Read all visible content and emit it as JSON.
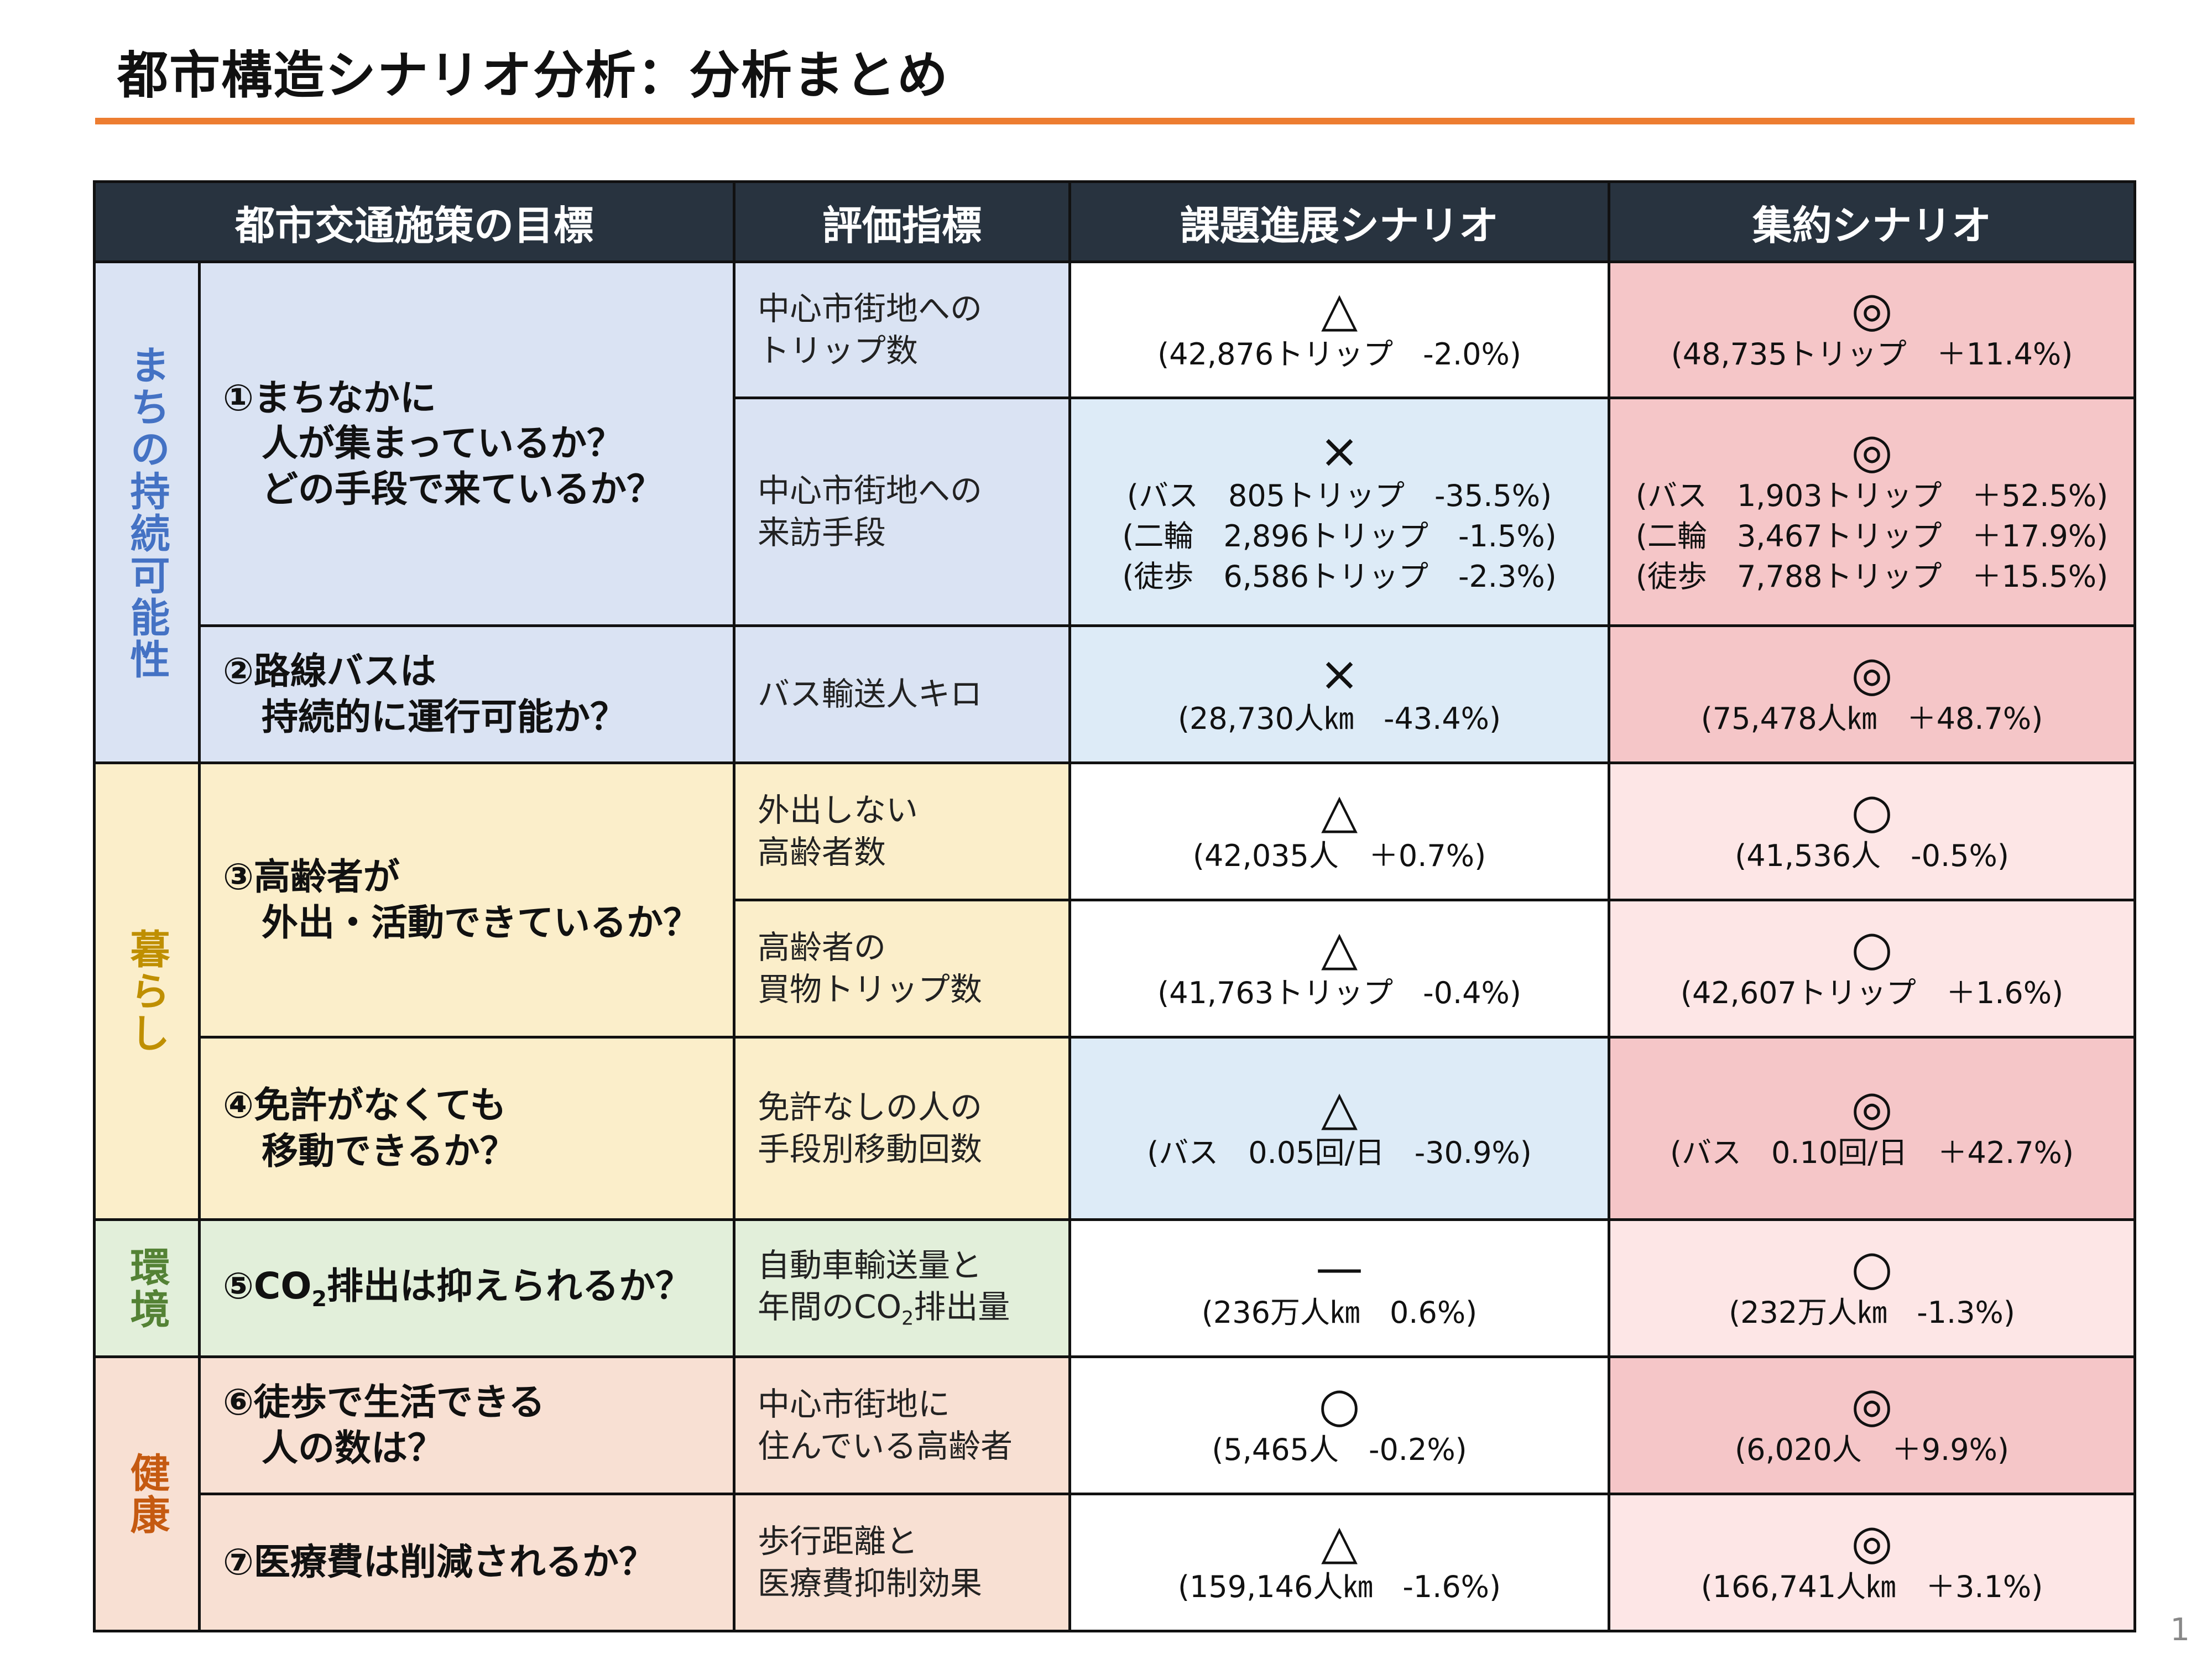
{
  "title": "都市構造シナリオ分析：分析まとめ",
  "page_number": "1",
  "headers": {
    "goal": "都市交通施策の目標",
    "indicator": "評価指標",
    "scenario_a": "課題進展シナリオ",
    "scenario_b": "集約シナリオ"
  },
  "categories": {
    "sustainability": "まちの持続可能性",
    "living": "暮らし",
    "environment": "環境",
    "health": "健康"
  },
  "goals": {
    "g1_l1": "①まちなかに",
    "g1_l2": "人が集まっているか？",
    "g1_l3": "どの手段で来ているか？",
    "g2_l1": "②路線バスは",
    "g2_l2": "持続的に運行可能か？",
    "g3_l1": "③高齢者が",
    "g3_l2": "外出・活動できているか？",
    "g4_l1": "④免許がなくても",
    "g4_l2": "移動できるか？",
    "g5_pre": "⑤CO",
    "g5_sub": "2",
    "g5_post": "排出は抑えられるか？",
    "g6_l1": "⑥徒歩で生活できる",
    "g6_l2": "人の数は？",
    "g7_l1": "⑦医療費は削減されるか？"
  },
  "indicators": {
    "i1_l1": "中心市街地への",
    "i1_l2": "トリップ数",
    "i2_l1": "中心市街地への",
    "i2_l2": "来訪手段",
    "i3_l1": "バス輸送人キロ",
    "i4_l1": "外出しない",
    "i4_l2": "高齢者数",
    "i5_l1": "高齢者の",
    "i5_l2": "買物トリップ数",
    "i6_l1": "免許なしの人の",
    "i6_l2": "手段別移動回数",
    "i7_l1": "自動車輸送量と",
    "i7_l2_pre": "年間のCO",
    "i7_l2_sub": "2",
    "i7_l2_post": "排出量",
    "i8_l1": "中心市街地に",
    "i8_l2": "住んでいる高齢者",
    "i9_l1": "歩行距離と",
    "i9_l2": "医療費抑制効果"
  },
  "scenario_a": {
    "r1_sym": "△",
    "r1_v1": "(42,876トリップ　-2.0%)",
    "r2_sym": "×",
    "r2_v1": "(バス　805トリップ　-35.5%)",
    "r2_v2": "(二輪　2,896トリップ　-1.5%)",
    "r2_v3": "(徒歩　6,586トリップ　-2.3%)",
    "r3_sym": "×",
    "r3_v1": "(28,730人㎞　-43.4%)",
    "r4_sym": "△",
    "r4_v1": "(42,035人　＋0.7%)",
    "r5_sym": "△",
    "r5_v1": "(41,763トリップ　-0.4%)",
    "r6_sym": "△",
    "r6_v1": "(バス　0.05回/日　-30.9%)",
    "r7_sym": "—",
    "r7_v1": "(236万人㎞　0.6%)",
    "r8_sym": "○",
    "r8_v1": "(5,465人　-0.2%)",
    "r9_sym": "△",
    "r9_v1": "(159,146人㎞　-1.6%)"
  },
  "scenario_b": {
    "r1_sym": "◎",
    "r1_v1": "(48,735トリップ　＋11.4%)",
    "r2_sym": "◎",
    "r2_v1": "(バス　1,903トリップ　＋52.5%)",
    "r2_v2": "(二輪　3,467トリップ　＋17.9%)",
    "r2_v3": "(徒歩　7,788トリップ　＋15.5%)",
    "r3_sym": "◎",
    "r3_v1": "(75,478人㎞　＋48.7%)",
    "r4_sym": "○",
    "r4_v1": "(41,536人　-0.5%)",
    "r5_sym": "○",
    "r5_v1": "(42,607トリップ　＋1.6%)",
    "r6_sym": "◎",
    "r6_v1": "(バス　0.10回/日　＋42.7%)",
    "r7_sym": "○",
    "r7_v1": "(232万人㎞　-1.3%)",
    "r8_sym": "◎",
    "r8_v1": "(6,020人　＋9.9%)",
    "r9_sym": "◎",
    "r9_v1": "(166,741人㎞　＋3.1%)"
  },
  "colors": {
    "header_bg": "#28333f",
    "accent_rule": "#ed7d31",
    "cat_sustainability": "#4472c4",
    "cat_living": "#bf8f00",
    "cat_environment": "#548235",
    "cat_health": "#c55a11"
  }
}
